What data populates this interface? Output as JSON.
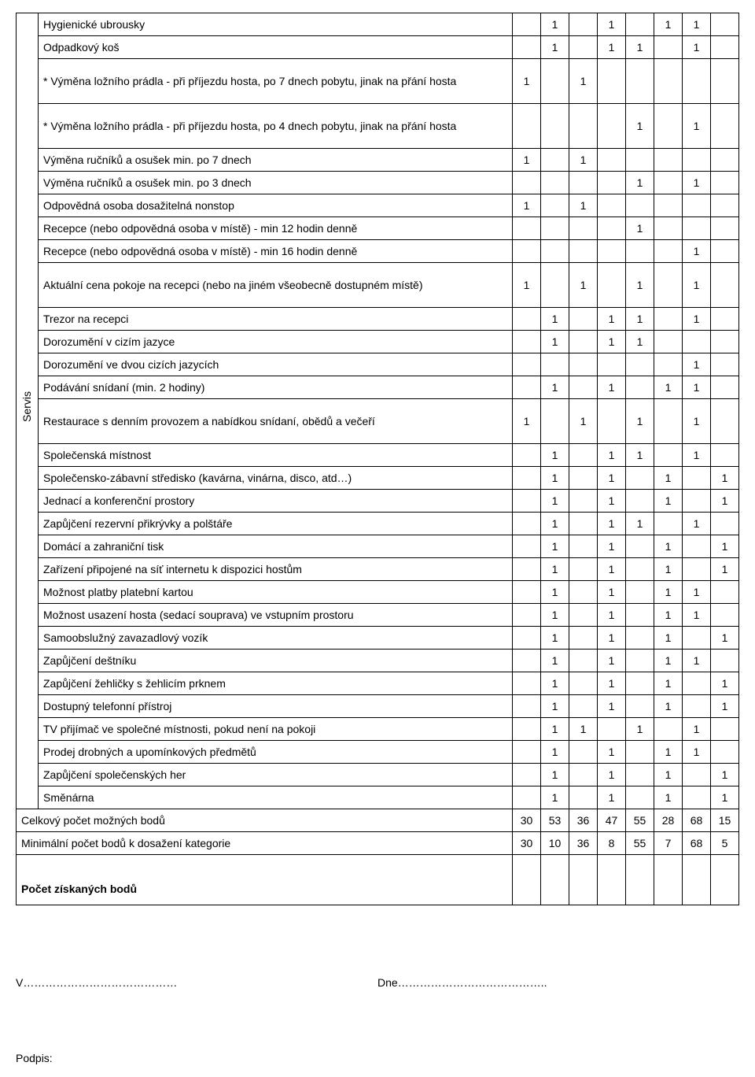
{
  "sideLabel": "Servis",
  "rows": [
    {
      "label": "Hygienické ubrousky",
      "cells": [
        "",
        "1",
        "",
        "1",
        "",
        "1",
        "1",
        ""
      ]
    },
    {
      "label": "Odpadkový koš",
      "cells": [
        "",
        "1",
        "",
        "1",
        "1",
        "",
        "1",
        ""
      ]
    },
    {
      "label": "* Výměna ložního prádla - při příjezdu hosta, po 7 dnech pobytu, jinak na přání hosta",
      "cells": [
        "1",
        "",
        "1",
        "",
        "",
        "",
        "",
        ""
      ],
      "tall": true
    },
    {
      "label": "* Výměna ložního prádla - při příjezdu hosta, po 4 dnech pobytu, jinak na přání hosta",
      "cells": [
        "",
        "",
        "",
        "",
        "1",
        "",
        "1",
        ""
      ],
      "tall": true
    },
    {
      "label": "Výměna ručníků a osušek min. po 7 dnech",
      "cells": [
        "1",
        "",
        "1",
        "",
        "",
        "",
        "",
        ""
      ]
    },
    {
      "label": "Výměna ručníků a osušek min. po 3 dnech",
      "cells": [
        "",
        "",
        "",
        "",
        "1",
        "",
        "1",
        ""
      ]
    },
    {
      "label": "Odpovědná osoba dosažitelná nonstop",
      "cells": [
        "1",
        "",
        "1",
        "",
        "",
        "",
        "",
        ""
      ]
    },
    {
      "label": "Recepce (nebo odpovědná osoba v místě) - min 12 hodin denně",
      "cells": [
        "",
        "",
        "",
        "",
        "1",
        "",
        "",
        ""
      ]
    },
    {
      "label": "Recepce (nebo odpovědná osoba v místě) - min 16 hodin denně",
      "cells": [
        "",
        "",
        "",
        "",
        "",
        "",
        "1",
        ""
      ]
    },
    {
      "label": "Aktuální cena pokoje na recepci (nebo na jiném všeobecně dostupném místě)",
      "cells": [
        "1",
        "",
        "1",
        "",
        "1",
        "",
        "1",
        ""
      ],
      "tall": true
    },
    {
      "label": "Trezor na recepci",
      "cells": [
        "",
        "1",
        "",
        "1",
        "1",
        "",
        "1",
        ""
      ]
    },
    {
      "label": "Dorozumění v cizím jazyce",
      "cells": [
        "",
        "1",
        "",
        "1",
        "1",
        "",
        "",
        ""
      ]
    },
    {
      "label": "Dorozumění ve dvou cizích jazycích",
      "cells": [
        "",
        "",
        "",
        "",
        "",
        "",
        "1",
        ""
      ]
    },
    {
      "label": "Podávání snídaní (min. 2 hodiny)",
      "cells": [
        "",
        "1",
        "",
        "1",
        "",
        "1",
        "1",
        ""
      ]
    },
    {
      "label": "Restaurace s denním provozem a nabídkou snídaní, obědů a večeří",
      "cells": [
        "1",
        "",
        "1",
        "",
        "1",
        "",
        "1",
        ""
      ],
      "tall": true
    },
    {
      "label": "Společenská místnost",
      "cells": [
        "",
        "1",
        "",
        "1",
        "1",
        "",
        "1",
        ""
      ]
    },
    {
      "label": "Společensko-zábavní středisko (kavárna, vinárna, disco, atd…)",
      "cells": [
        "",
        "1",
        "",
        "1",
        "",
        "1",
        "",
        "1"
      ]
    },
    {
      "label": "Jednací a konferenční prostory",
      "cells": [
        "",
        "1",
        "",
        "1",
        "",
        "1",
        "",
        "1"
      ]
    },
    {
      "label": "Zapůjčení rezervní přikrývky a polštáře",
      "cells": [
        "",
        "1",
        "",
        "1",
        "1",
        "",
        "1",
        ""
      ]
    },
    {
      "label": "Domácí a zahraniční tisk",
      "cells": [
        "",
        "1",
        "",
        "1",
        "",
        "1",
        "",
        "1"
      ]
    },
    {
      "label": "Zařízení připojené na síť internetu k dispozici hostům",
      "cells": [
        "",
        "1",
        "",
        "1",
        "",
        "1",
        "",
        "1"
      ]
    },
    {
      "label": "Možnost platby platební kartou",
      "cells": [
        "",
        "1",
        "",
        "1",
        "",
        "1",
        "1",
        ""
      ]
    },
    {
      "label": "Možnost usazení hosta (sedací souprava) ve vstupním prostoru",
      "cells": [
        "",
        "1",
        "",
        "1",
        "",
        "1",
        "1",
        ""
      ]
    },
    {
      "label": "Samoobslužný zavazadlový vozík",
      "cells": [
        "",
        "1",
        "",
        "1",
        "",
        "1",
        "",
        "1"
      ]
    },
    {
      "label": "Zapůjčení deštníku",
      "cells": [
        "",
        "1",
        "",
        "1",
        "",
        "1",
        "1",
        ""
      ]
    },
    {
      "label": "Zapůjčení žehličky s žehlicím prknem",
      "cells": [
        "",
        "1",
        "",
        "1",
        "",
        "1",
        "",
        "1"
      ]
    },
    {
      "label": "Dostupný telefonní přístroj",
      "cells": [
        "",
        "1",
        "",
        "1",
        "",
        "1",
        "",
        "1"
      ]
    },
    {
      "label": "TV přijímač ve společné místnosti, pokud není na pokoji",
      "cells": [
        "",
        "1",
        "1",
        "",
        "1",
        "",
        "1",
        ""
      ]
    },
    {
      "label": "Prodej drobných a upomínkových předmětů",
      "cells": [
        "",
        "1",
        "",
        "1",
        "",
        "1",
        "1",
        ""
      ]
    },
    {
      "label": "Zapůjčení společenských her",
      "cells": [
        "",
        "1",
        "",
        "1",
        "",
        "1",
        "",
        "1"
      ]
    },
    {
      "label": "Směnárna",
      "cells": [
        "",
        "1",
        "",
        "1",
        "",
        "1",
        "",
        "1"
      ]
    }
  ],
  "totals": [
    {
      "label": "Celkový počet možných bodů",
      "cells": [
        "30",
        "53",
        "36",
        "47",
        "55",
        "28",
        "68",
        "15"
      ]
    },
    {
      "label": "Minimální počet bodů k dosažení kategorie",
      "cells": [
        "30",
        "10",
        "36",
        "8",
        "55",
        "7",
        "68",
        "5"
      ]
    }
  ],
  "finalLabel": "Počet získaných bodů",
  "footer": {
    "place": "V……………………………………",
    "date": "Dne…………………………………..",
    "sign": "Podpis:"
  }
}
